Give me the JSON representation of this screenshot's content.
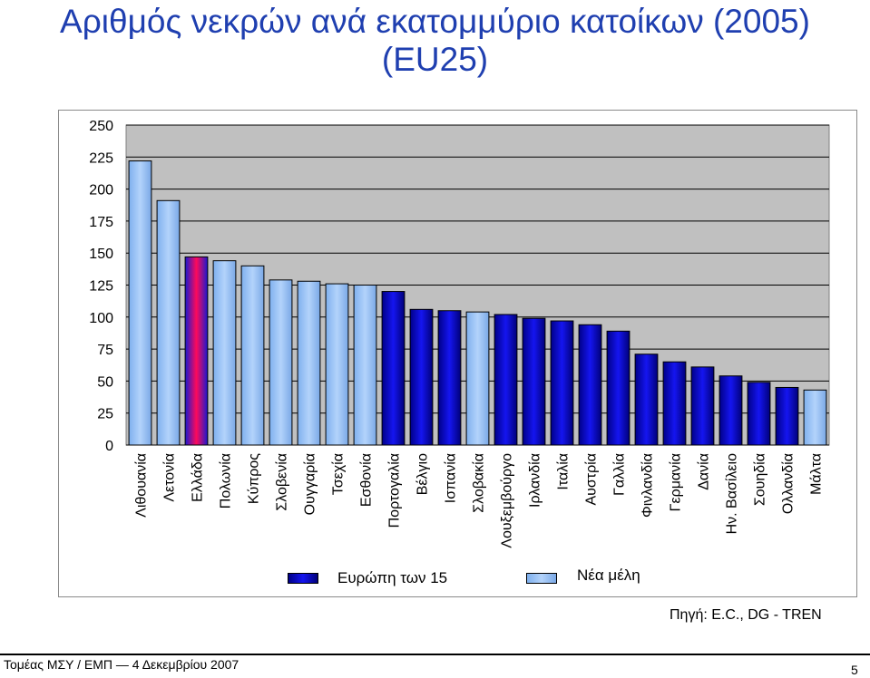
{
  "chart_data": {
    "type": "bar",
    "title_line1": "Αριθμός νεκρών ανά εκατομμύριο κατοίκων (2005)",
    "title_line2": "(EU25)",
    "ylim": [
      0,
      250
    ],
    "yticks": [
      0,
      25,
      50,
      75,
      100,
      125,
      150,
      175,
      200,
      225,
      250
    ],
    "grid": true,
    "categories": [
      "Λιθουανία",
      "Λετονία",
      "Ελλάδα",
      "Πολωνία",
      "Κύπρος",
      "Σλοβενία",
      "Ουγγαρία",
      "Τσεχία",
      "Εσθονία",
      "Πορτογαλία",
      "Βέλγιο",
      "Ισπανία",
      "Σλοβακία",
      "Λουξεμβούργο",
      "Ιρλανδία",
      "Ιταλία",
      "Αυστρία",
      "Γαλλία",
      "Φινλανδία",
      "Γερμανία",
      "Δανία",
      "Ην. Βασίλειο",
      "Σουηδία",
      "Ολλανδία",
      "Μάλτα"
    ],
    "values": [
      222,
      191,
      147,
      144,
      140,
      129,
      128,
      126,
      125,
      120,
      106,
      105,
      104,
      102,
      99,
      97,
      94,
      89,
      71,
      65,
      61,
      54,
      49,
      45,
      43
    ],
    "groups": [
      "Νέα μέλη",
      "Νέα μέλη",
      "Ευρώπη των 15",
      "Νέα μέλη",
      "Νέα μέλη",
      "Νέα μέλη",
      "Νέα μέλη",
      "Νέα μέλη",
      "Νέα μέλη",
      "Ευρώπη των 15",
      "Ευρώπη των 15",
      "Ευρώπη των 15",
      "Νέα μέλη",
      "Ευρώπη των 15",
      "Ευρώπη των 15",
      "Ευρώπη των 15",
      "Ευρώπη των 15",
      "Ευρώπη των 15",
      "Ευρώπη των 15",
      "Ευρώπη των 15",
      "Ευρώπη των 15",
      "Ευρώπη των 15",
      "Ευρώπη των 15",
      "Ευρώπη των 15",
      "Νέα μέλη"
    ],
    "legend": [
      {
        "name": "Ευρώπη των 15",
        "color": "#1010e0"
      },
      {
        "name": "Νέα μέλη",
        "color": "#99c2f5"
      }
    ],
    "highlight": {
      "category": "Ελλάδα",
      "color": "#e8106a"
    },
    "plot_background": "#c0c0c0"
  },
  "source": "Πηγή: E.C., DG - TREN",
  "footer": "Τομέας ΜΣΥ / ΕΜΠ — 4 Δεκεμβρίου 2007",
  "page_number": "5"
}
